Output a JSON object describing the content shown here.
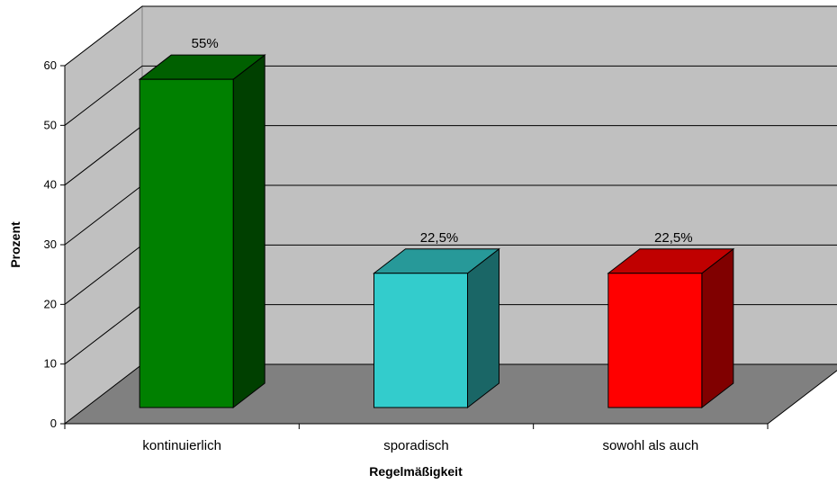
{
  "chart_data": {
    "type": "bar",
    "title": "",
    "xlabel": "Regelmäßigkeit",
    "ylabel": "Prozent",
    "categories": [
      "kontinuierlich",
      "sporadisch",
      "sowohl als auch"
    ],
    "values": [
      55,
      22.5,
      22.5
    ],
    "data_labels": [
      "55%",
      "22,5%",
      "22,5%"
    ],
    "colors": [
      "#008000",
      "#33CCCC",
      "#FF0000"
    ],
    "side_colors": [
      "#004000",
      "#1A6666",
      "#800000"
    ],
    "top_colors": [
      "#006000",
      "#279999",
      "#C00000"
    ],
    "ylim": [
      0,
      60
    ],
    "yticks": [
      0,
      10,
      20,
      30,
      40,
      50,
      60
    ],
    "grid": true,
    "legend": "none",
    "style": "3d-column"
  }
}
